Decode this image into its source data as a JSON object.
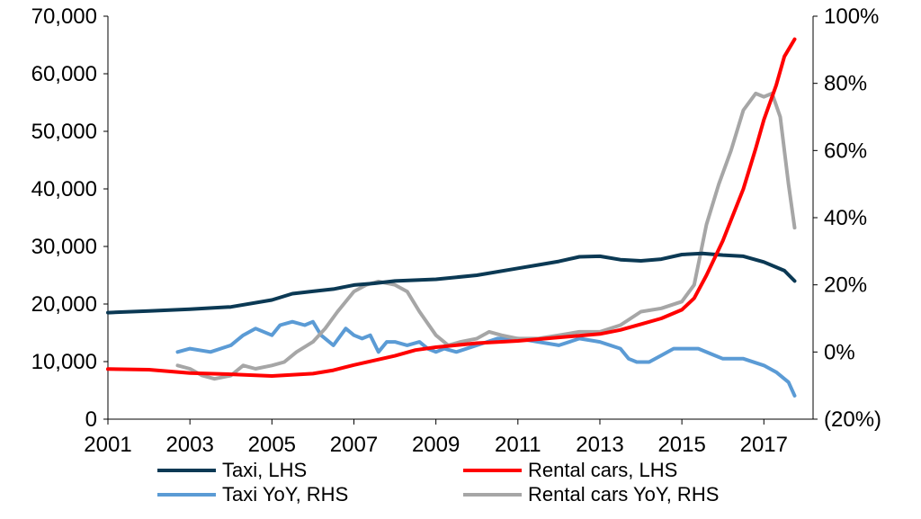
{
  "chart_data": {
    "type": "line",
    "title": "",
    "xlabel": "",
    "ylabel_left": "",
    "ylabel_right": "",
    "x_ticks": [
      "2001",
      "2003",
      "2005",
      "2007",
      "2009",
      "2011",
      "2013",
      "2015",
      "2017"
    ],
    "y_left_ticks": [
      "0",
      "10,000",
      "20,000",
      "30,000",
      "40,000",
      "50,000",
      "60,000",
      "70,000"
    ],
    "y_right_ticks": [
      "(20%)",
      "0%",
      "20%",
      "40%",
      "60%",
      "80%",
      "100%"
    ],
    "xlim": [
      2001,
      2018.2
    ],
    "ylim_left": [
      0,
      70000
    ],
    "ylim_right": [
      -20,
      100
    ],
    "grid": false,
    "legend_position": "bottom",
    "series": [
      {
        "name": "Taxi, LHS",
        "axis": "left",
        "color": "#0b3954",
        "points": [
          [
            2001.0,
            18500
          ],
          [
            2002.0,
            18800
          ],
          [
            2003.0,
            19100
          ],
          [
            2004.0,
            19500
          ],
          [
            2005.0,
            20700
          ],
          [
            2005.5,
            21800
          ],
          [
            2006.0,
            22200
          ],
          [
            2006.5,
            22600
          ],
          [
            2007.0,
            23300
          ],
          [
            2007.5,
            23600
          ],
          [
            2008.0,
            24000
          ],
          [
            2009.0,
            24300
          ],
          [
            2010.0,
            25000
          ],
          [
            2011.0,
            26200
          ],
          [
            2011.5,
            26800
          ],
          [
            2012.0,
            27400
          ],
          [
            2012.5,
            28200
          ],
          [
            2013.0,
            28300
          ],
          [
            2013.5,
            27700
          ],
          [
            2014.0,
            27500
          ],
          [
            2014.5,
            27800
          ],
          [
            2015.0,
            28600
          ],
          [
            2015.5,
            28800
          ],
          [
            2016.0,
            28500
          ],
          [
            2016.5,
            28300
          ],
          [
            2017.0,
            27300
          ],
          [
            2017.5,
            25800
          ],
          [
            2017.75,
            24000
          ]
        ]
      },
      {
        "name": "Rental cars, LHS",
        "axis": "left",
        "color": "#ff0000",
        "points": [
          [
            2001.0,
            8700
          ],
          [
            2002.0,
            8600
          ],
          [
            2003.0,
            8000
          ],
          [
            2004.0,
            7800
          ],
          [
            2005.0,
            7500
          ],
          [
            2006.0,
            7900
          ],
          [
            2006.5,
            8500
          ],
          [
            2007.0,
            9400
          ],
          [
            2007.5,
            10200
          ],
          [
            2008.0,
            11000
          ],
          [
            2008.5,
            12000
          ],
          [
            2009.0,
            12500
          ],
          [
            2010.0,
            13200
          ],
          [
            2011.0,
            13600
          ],
          [
            2012.0,
            14200
          ],
          [
            2013.0,
            14800
          ],
          [
            2013.5,
            15500
          ],
          [
            2014.0,
            16500
          ],
          [
            2014.5,
            17500
          ],
          [
            2015.0,
            19000
          ],
          [
            2015.3,
            21000
          ],
          [
            2015.6,
            25000
          ],
          [
            2016.0,
            31000
          ],
          [
            2016.5,
            40000
          ],
          [
            2016.8,
            47000
          ],
          [
            2017.0,
            52000
          ],
          [
            2017.3,
            58000
          ],
          [
            2017.5,
            63000
          ],
          [
            2017.75,
            66000
          ]
        ]
      },
      {
        "name": "Taxi YoY, RHS",
        "axis": "right",
        "color": "#5b9bd5",
        "points": [
          [
            2002.7,
            0
          ],
          [
            2003.0,
            1
          ],
          [
            2003.5,
            0
          ],
          [
            2004.0,
            2
          ],
          [
            2004.3,
            5
          ],
          [
            2004.6,
            7
          ],
          [
            2005.0,
            5
          ],
          [
            2005.2,
            8
          ],
          [
            2005.5,
            9
          ],
          [
            2005.8,
            8
          ],
          [
            2006.0,
            9
          ],
          [
            2006.2,
            5
          ],
          [
            2006.5,
            2
          ],
          [
            2006.8,
            7
          ],
          [
            2007.0,
            5
          ],
          [
            2007.2,
            4
          ],
          [
            2007.4,
            5
          ],
          [
            2007.6,
            0
          ],
          [
            2007.8,
            3
          ],
          [
            2008.0,
            3
          ],
          [
            2008.3,
            2
          ],
          [
            2008.6,
            3
          ],
          [
            2008.8,
            1
          ],
          [
            2009.0,
            0
          ],
          [
            2009.2,
            1
          ],
          [
            2009.5,
            0
          ],
          [
            2010.0,
            2
          ],
          [
            2010.5,
            4
          ],
          [
            2011.0,
            4
          ],
          [
            2011.5,
            3
          ],
          [
            2012.0,
            2
          ],
          [
            2012.5,
            4
          ],
          [
            2013.0,
            3
          ],
          [
            2013.5,
            1
          ],
          [
            2013.7,
            -2
          ],
          [
            2013.9,
            -3
          ],
          [
            2014.2,
            -3
          ],
          [
            2014.5,
            -1
          ],
          [
            2014.8,
            1
          ],
          [
            2015.0,
            1
          ],
          [
            2015.4,
            1
          ],
          [
            2015.8,
            -1
          ],
          [
            2016.0,
            -2
          ],
          [
            2016.5,
            -2
          ],
          [
            2017.0,
            -4
          ],
          [
            2017.3,
            -6
          ],
          [
            2017.6,
            -9
          ],
          [
            2017.75,
            -13
          ]
        ]
      },
      {
        "name": "Rental cars YoY, RHS",
        "axis": "right",
        "color": "#a6a6a6",
        "points": [
          [
            2002.7,
            -4
          ],
          [
            2003.0,
            -5
          ],
          [
            2003.3,
            -7
          ],
          [
            2003.6,
            -8
          ],
          [
            2004.0,
            -7
          ],
          [
            2004.3,
            -4
          ],
          [
            2004.6,
            -5
          ],
          [
            2005.0,
            -4
          ],
          [
            2005.3,
            -3
          ],
          [
            2005.6,
            0
          ],
          [
            2006.0,
            3
          ],
          [
            2006.3,
            7
          ],
          [
            2006.6,
            12
          ],
          [
            2007.0,
            18
          ],
          [
            2007.3,
            20
          ],
          [
            2007.6,
            21
          ],
          [
            2008.0,
            20
          ],
          [
            2008.3,
            18
          ],
          [
            2008.6,
            12
          ],
          [
            2009.0,
            5
          ],
          [
            2009.3,
            2
          ],
          [
            2009.6,
            3
          ],
          [
            2010.0,
            4
          ],
          [
            2010.3,
            6
          ],
          [
            2010.6,
            5
          ],
          [
            2011.0,
            4
          ],
          [
            2011.5,
            4
          ],
          [
            2012.0,
            5
          ],
          [
            2012.5,
            6
          ],
          [
            2013.0,
            6
          ],
          [
            2013.5,
            8
          ],
          [
            2014.0,
            12
          ],
          [
            2014.5,
            13
          ],
          [
            2015.0,
            15
          ],
          [
            2015.3,
            20
          ],
          [
            2015.6,
            38
          ],
          [
            2015.9,
            50
          ],
          [
            2016.2,
            60
          ],
          [
            2016.5,
            72
          ],
          [
            2016.8,
            77
          ],
          [
            2017.0,
            76
          ],
          [
            2017.2,
            77
          ],
          [
            2017.4,
            70
          ],
          [
            2017.6,
            50
          ],
          [
            2017.75,
            37
          ]
        ]
      }
    ]
  }
}
